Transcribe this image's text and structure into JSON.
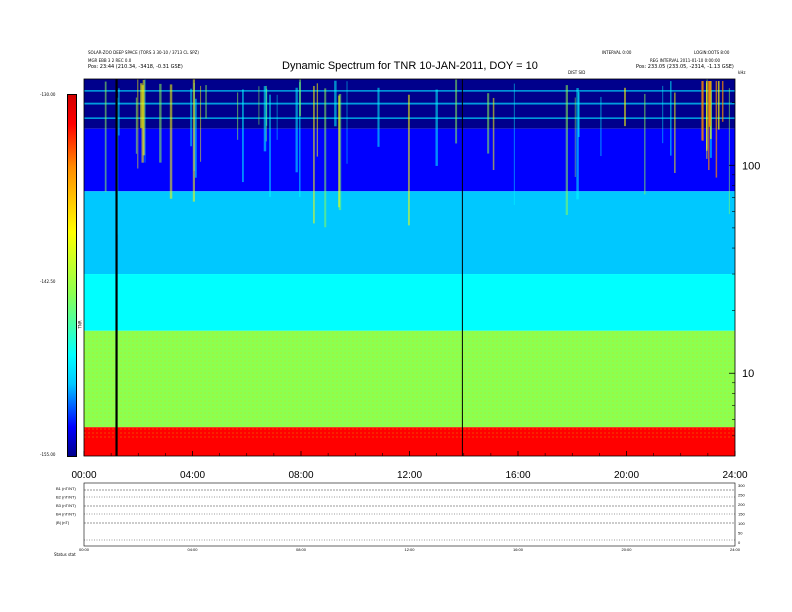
{
  "header": {
    "title": "Dynamic Spectrum for TNR 10-JAN-2011, DOY = 10",
    "left_line1": "SOLAR-ZOO DEEP SPACE (TORS 3 30-10 / 3713 CL SPZ)",
    "left_line2": "MGR EBB 3 2 REC 0.0",
    "left_pos": "Pos:   23:44 (210.34, -3418, -0.31 GSE)",
    "right_top_a": "INTERVAL 0:00",
    "right_top_b": "LOGIN:OOTS 8:00",
    "right_line2": "REG INTERVAL 2011-01-10 0:00:00",
    "right_pos": "Pos:   233.05 (233.05, -2314, -1.13 GSE)",
    "marker_label": "DIST SID",
    "mid_marker": "DSYS",
    "corner": "kHz"
  },
  "colorbar": {
    "ticks": [
      "-130.00",
      "-142.50",
      "-155.00"
    ],
    "label": "TNR"
  },
  "bottom": {
    "panel_labels": [
      "B1 (nT/NT)",
      "B2 (nT/NT)",
      "B3 (nT/NT)",
      "B4 (nT/NT)",
      "|B| (nT)"
    ],
    "right_ticks": [
      "300",
      "250",
      "200",
      "150",
      "100",
      "50",
      "0"
    ],
    "x_ticks": [
      "00:00",
      "04:00",
      "08:00",
      "12:00",
      "16:00",
      "20:00",
      "24:00"
    ],
    "footer": "Status   stat"
  },
  "chart_data": {
    "type": "heatmap",
    "title": "Dynamic Spectrum for TNR 10-JAN-2011, DOY = 10",
    "x": {
      "ticks": [
        "00:00",
        "04:00",
        "08:00",
        "12:00",
        "16:00",
        "20:00",
        "24:00"
      ],
      "range_hours": [
        0,
        24
      ]
    },
    "y": {
      "scale": "log",
      "range_khz": [
        4,
        260
      ],
      "tick_labels": [
        "100",
        "10"
      ]
    },
    "colorbar": {
      "range": [
        -155.0,
        -130.0
      ],
      "ticks": [
        -130.0,
        -142.5,
        -155.0
      ],
      "colors": [
        "#00008c",
        "#0000ff",
        "#00c8ff",
        "#00ffff",
        "#8cff50",
        "#ffff00",
        "#ff8c00",
        "#ff0000",
        "#d20000"
      ]
    },
    "bands": [
      {
        "freq_from": 260,
        "freq_to": 150,
        "level": -130.5
      },
      {
        "freq_from": 150,
        "freq_to": 75,
        "level": -133.0
      },
      {
        "freq_from": 75,
        "freq_to": 30,
        "level": -137.5
      },
      {
        "freq_from": 30,
        "freq_to": 16,
        "level": -140.5
      },
      {
        "freq_from": 16,
        "freq_to": 5.5,
        "level": -143.0
      },
      {
        "freq_from": 5.5,
        "freq_to": 4,
        "level": -153.0
      }
    ],
    "vertical_markers_hours": [
      1.2,
      13.95
    ],
    "bottom_panels": [
      "B1 (nT/NT)",
      "B2 (nT/NT)",
      "B3 (nT/NT)",
      "B4 (nT/NT)",
      "|B| (nT)"
    ]
  }
}
